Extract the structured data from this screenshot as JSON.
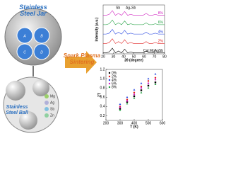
{
  "diagram": {
    "jar_title": "Stainless Steel Jar",
    "chambers": [
      "A",
      "B",
      "C",
      "D"
    ],
    "ball_label": "Stainless Steel Ball",
    "elements": [
      "Mg",
      "Ag",
      "Sb",
      "Zn"
    ],
    "process": "Spark Plasma Sintering"
  },
  "chart_data": [
    {
      "type": "line",
      "xlabel": "2θ (degree)",
      "ylabel": "Intensity (a.u.)",
      "markers": [
        "Sb",
        "Ag₃Sb"
      ],
      "x": [
        20,
        23,
        26,
        29,
        32,
        35,
        38,
        41,
        44,
        47,
        50,
        53,
        56,
        59,
        62,
        65,
        68,
        71,
        74,
        77,
        80
      ],
      "xlim": [
        20,
        80
      ],
      "xticks": [
        20,
        30,
        40,
        50,
        60,
        70,
        80
      ],
      "ylim": [
        0,
        52
      ],
      "series": [
        {
          "name": "Cal.MgAgSb",
          "color": "#000000",
          "values": [
            1,
            1,
            2,
            6,
            1,
            3,
            1,
            5,
            1,
            2,
            1,
            1,
            1,
            1,
            3,
            1,
            1,
            2,
            1,
            1,
            1
          ]
        },
        {
          "name": "2%",
          "color": "#e02020",
          "values": [
            11,
            11,
            12,
            16,
            11,
            13,
            11,
            15,
            11,
            12,
            11,
            11,
            11,
            11,
            13,
            11,
            11,
            12,
            11,
            11,
            11
          ]
        },
        {
          "name": "4%",
          "color": "#2040e0",
          "values": [
            21,
            21,
            22,
            26,
            21,
            23,
            21,
            25,
            21,
            22,
            21,
            21,
            21,
            21,
            23,
            21,
            21,
            22,
            21,
            21,
            21
          ]
        },
        {
          "name": "6%",
          "color": "#20a040",
          "values": [
            31,
            31,
            32,
            36,
            31,
            33,
            31,
            35,
            31,
            32,
            31,
            31,
            31,
            31,
            33,
            31,
            31,
            32,
            31,
            31,
            31
          ]
        },
        {
          "name": "8%",
          "color": "#d020c0",
          "values": [
            41,
            41,
            42,
            46,
            41,
            43,
            41,
            45,
            41,
            42,
            41,
            41,
            41,
            41,
            43,
            41,
            41,
            42,
            41,
            41,
            41
          ]
        }
      ]
    },
    {
      "type": "scatter",
      "xlabel": "T (K)",
      "ylabel": "ZT",
      "x": [
        300,
        350,
        400,
        450,
        500,
        550
      ],
      "xlim": [
        200,
        600
      ],
      "xticks": [
        200,
        300,
        400,
        500,
        600
      ],
      "ylim": [
        0.1,
        1.2
      ],
      "yticks": [
        0.2,
        0.4,
        0.6,
        0.8,
        {
          "value": 1,
          "label": "1.0"
        },
        1.2
      ],
      "series": [
        {
          "name": "0%",
          "color": "#000000",
          "values": [
            0.35,
            0.5,
            0.62,
            0.75,
            0.85,
            0.92
          ]
        },
        {
          "name": "2%",
          "color": "#e02020",
          "values": [
            0.4,
            0.55,
            0.7,
            0.83,
            0.95,
            1.02
          ]
        },
        {
          "name": "4%",
          "color": "#2040e0",
          "values": [
            0.45,
            0.6,
            0.76,
            0.9,
            1.0,
            1.1
          ]
        },
        {
          "name": "6%",
          "color": "#d020c0",
          "values": [
            0.38,
            0.52,
            0.66,
            0.8,
            0.9,
            0.98
          ]
        },
        {
          "name": "8%",
          "color": "#20a040",
          "values": [
            0.32,
            0.46,
            0.58,
            0.7,
            0.8,
            0.88
          ]
        }
      ]
    }
  ]
}
